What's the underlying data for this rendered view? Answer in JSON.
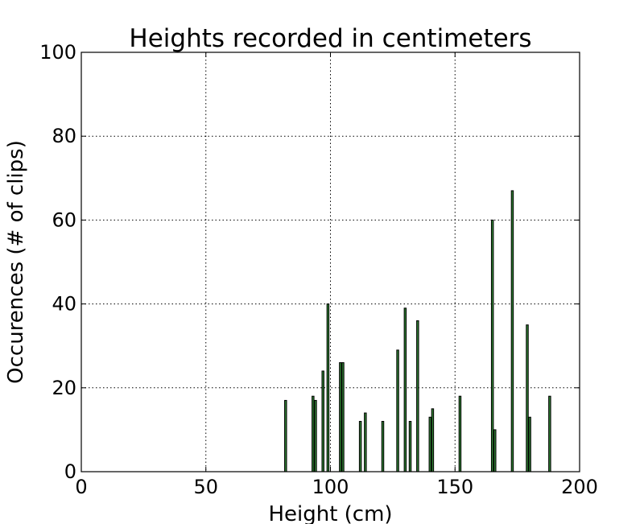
{
  "chart_data": {
    "type": "bar",
    "title": "Heights recorded in centimeters",
    "xlabel": "Height (cm)",
    "ylabel": "Occurences (# of clips)",
    "xlim": [
      0,
      200
    ],
    "ylim": [
      0,
      100
    ],
    "xticks": [
      0,
      50,
      100,
      150,
      200
    ],
    "yticks": [
      0,
      20,
      40,
      60,
      80,
      100
    ],
    "grid": true,
    "bar_color": "#2e7d32",
    "bar_width": 0.8,
    "x": [
      82,
      93,
      94,
      97,
      99,
      104,
      105,
      112,
      114,
      121,
      127,
      130,
      132,
      135,
      140,
      141,
      152,
      165,
      166,
      173,
      179,
      180,
      188
    ],
    "values": [
      17,
      18,
      17,
      24,
      40,
      26,
      26,
      12,
      14,
      12,
      29,
      39,
      12,
      36,
      13,
      15,
      18,
      60,
      10,
      67,
      35,
      13,
      18
    ]
  }
}
